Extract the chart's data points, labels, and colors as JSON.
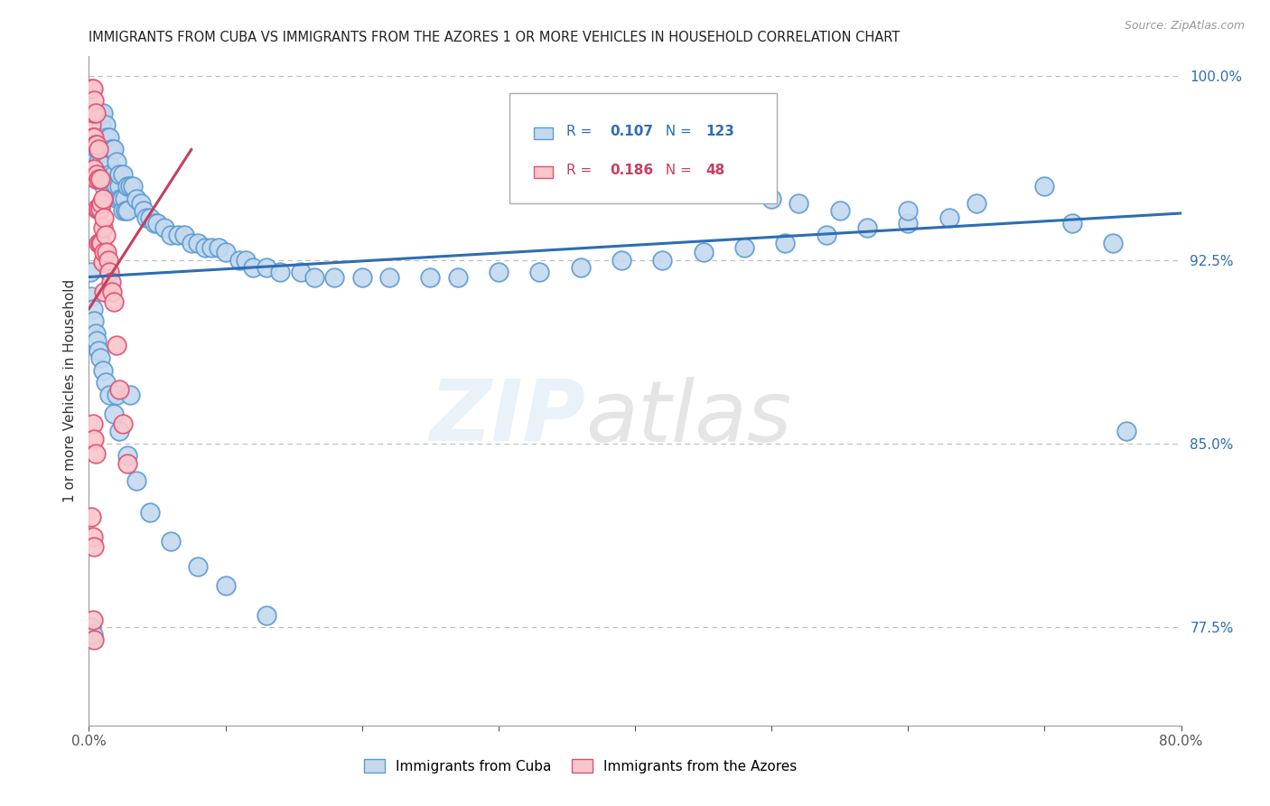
{
  "title": "IMMIGRANTS FROM CUBA VS IMMIGRANTS FROM THE AZORES 1 OR MORE VEHICLES IN HOUSEHOLD CORRELATION CHART",
  "source": "Source: ZipAtlas.com",
  "ylabel": "1 or more Vehicles in Household",
  "xlim": [
    0.0,
    0.8
  ],
  "ylim": [
    0.735,
    1.008
  ],
  "ytick_positions": [
    0.775,
    0.85,
    0.925,
    1.0
  ],
  "ytick_labels": [
    "77.5%",
    "85.0%",
    "92.5%",
    "100.0%"
  ],
  "cuba_R": 0.107,
  "cuba_N": 123,
  "azores_R": 0.186,
  "azores_N": 48,
  "cuba_color": "#c5d9ee",
  "cuba_edge_color": "#5b9bd5",
  "azores_color": "#f9c6cc",
  "azores_edge_color": "#e05070",
  "cuba_line_color": "#2e6db4",
  "azores_line_color": "#c44060",
  "watermark_zip": "ZIP",
  "watermark_atlas": "atlas",
  "legend_r_color": "#2e6db4",
  "legend_n_color": "#2e6db4",
  "azores_legend_r_color": "#c44060",
  "azores_legend_n_color": "#c44060",
  "cuba_trend": [
    0.0,
    0.8,
    0.918,
    0.944
  ],
  "azores_trend": [
    0.0,
    0.075,
    0.905,
    0.97
  ],
  "cuba_scatter_x": [
    0.002,
    0.003,
    0.003,
    0.004,
    0.005,
    0.006,
    0.006,
    0.007,
    0.008,
    0.009,
    0.01,
    0.01,
    0.011,
    0.012,
    0.013,
    0.014,
    0.015,
    0.016,
    0.017,
    0.018,
    0.019,
    0.02,
    0.021,
    0.022,
    0.023,
    0.024,
    0.025,
    0.026,
    0.027,
    0.028,
    0.005,
    0.006,
    0.007,
    0.008,
    0.009,
    0.01,
    0.011,
    0.012,
    0.013,
    0.015,
    0.016,
    0.017,
    0.018,
    0.02,
    0.022,
    0.025,
    0.028,
    0.03,
    0.032,
    0.035,
    0.038,
    0.04,
    0.042,
    0.045,
    0.048,
    0.05,
    0.055,
    0.06,
    0.065,
    0.07,
    0.075,
    0.08,
    0.085,
    0.09,
    0.095,
    0.1,
    0.11,
    0.115,
    0.12,
    0.13,
    0.14,
    0.155,
    0.165,
    0.18,
    0.2,
    0.22,
    0.25,
    0.27,
    0.3,
    0.33,
    0.36,
    0.39,
    0.42,
    0.45,
    0.48,
    0.51,
    0.54,
    0.57,
    0.6,
    0.63,
    0.001,
    0.002,
    0.003,
    0.004,
    0.005,
    0.006,
    0.007,
    0.008,
    0.01,
    0.012,
    0.015,
    0.018,
    0.022,
    0.028,
    0.035,
    0.045,
    0.06,
    0.08,
    0.1,
    0.13,
    0.002,
    0.003,
    0.02,
    0.03,
    0.5,
    0.52,
    0.55,
    0.6,
    0.65,
    0.7,
    0.72,
    0.75,
    0.76
  ],
  "cuba_scatter_y": [
    0.97,
    0.965,
    0.975,
    0.98,
    0.975,
    0.97,
    0.96,
    0.965,
    0.975,
    0.965,
    0.975,
    0.96,
    0.955,
    0.965,
    0.96,
    0.965,
    0.96,
    0.955,
    0.955,
    0.96,
    0.955,
    0.955,
    0.95,
    0.955,
    0.95,
    0.95,
    0.945,
    0.95,
    0.945,
    0.945,
    0.985,
    0.985,
    0.985,
    0.985,
    0.98,
    0.985,
    0.975,
    0.98,
    0.975,
    0.975,
    0.97,
    0.97,
    0.97,
    0.965,
    0.96,
    0.96,
    0.955,
    0.955,
    0.955,
    0.95,
    0.948,
    0.945,
    0.942,
    0.942,
    0.94,
    0.94,
    0.938,
    0.935,
    0.935,
    0.935,
    0.932,
    0.932,
    0.93,
    0.93,
    0.93,
    0.928,
    0.925,
    0.925,
    0.922,
    0.922,
    0.92,
    0.92,
    0.918,
    0.918,
    0.918,
    0.918,
    0.918,
    0.918,
    0.92,
    0.92,
    0.922,
    0.925,
    0.925,
    0.928,
    0.93,
    0.932,
    0.935,
    0.938,
    0.94,
    0.942,
    0.92,
    0.91,
    0.905,
    0.9,
    0.895,
    0.892,
    0.888,
    0.885,
    0.88,
    0.875,
    0.87,
    0.862,
    0.855,
    0.845,
    0.835,
    0.822,
    0.81,
    0.8,
    0.792,
    0.78,
    0.775,
    0.772,
    0.87,
    0.87,
    0.95,
    0.948,
    0.945,
    0.945,
    0.948,
    0.955,
    0.94,
    0.932,
    0.855
  ],
  "azores_scatter_x": [
    0.002,
    0.002,
    0.003,
    0.003,
    0.003,
    0.004,
    0.004,
    0.004,
    0.005,
    0.005,
    0.005,
    0.006,
    0.006,
    0.006,
    0.007,
    0.007,
    0.007,
    0.007,
    0.008,
    0.008,
    0.008,
    0.009,
    0.009,
    0.01,
    0.01,
    0.01,
    0.011,
    0.011,
    0.011,
    0.012,
    0.013,
    0.014,
    0.015,
    0.016,
    0.017,
    0.018,
    0.02,
    0.022,
    0.025,
    0.028,
    0.003,
    0.004,
    0.005,
    0.002,
    0.003,
    0.004,
    0.003,
    0.004
  ],
  "azores_scatter_y": [
    0.995,
    0.98,
    0.995,
    0.985,
    0.975,
    0.99,
    0.975,
    0.962,
    0.985,
    0.972,
    0.958,
    0.972,
    0.96,
    0.946,
    0.97,
    0.958,
    0.946,
    0.932,
    0.958,
    0.946,
    0.932,
    0.948,
    0.932,
    0.95,
    0.938,
    0.924,
    0.942,
    0.928,
    0.912,
    0.935,
    0.928,
    0.925,
    0.92,
    0.916,
    0.912,
    0.908,
    0.89,
    0.872,
    0.858,
    0.842,
    0.858,
    0.852,
    0.846,
    0.82,
    0.812,
    0.808,
    0.778,
    0.77
  ]
}
